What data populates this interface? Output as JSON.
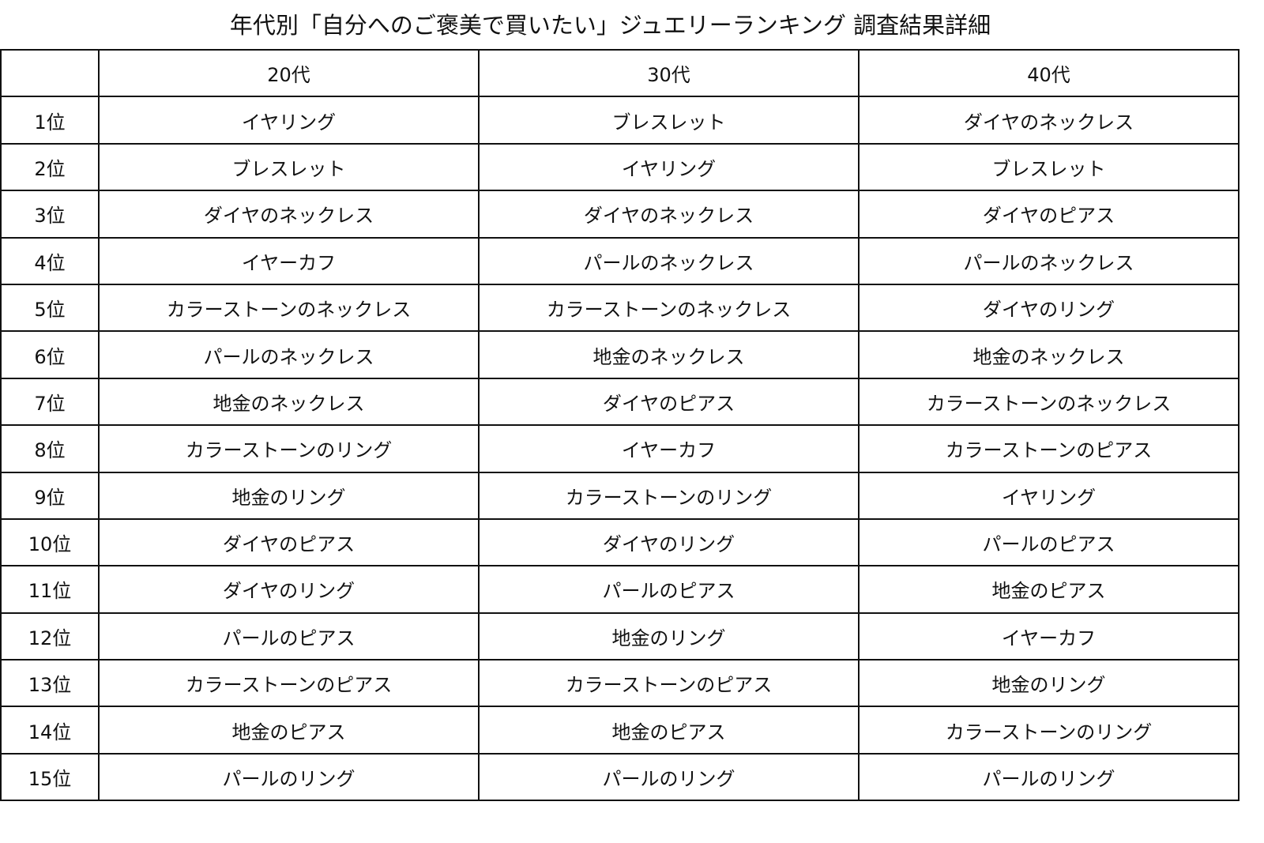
{
  "title": "年代別「自分へのご褒美で買いたい」ジュエリーランキング 調査結果詳細",
  "table": {
    "corner": "",
    "headers": [
      "20代",
      "30代",
      "40代"
    ],
    "rows": [
      {
        "rank": "1位",
        "cells": [
          "イヤリング",
          "ブレスレット",
          "ダイヤのネックレス"
        ]
      },
      {
        "rank": "2位",
        "cells": [
          "ブレスレット",
          "イヤリング",
          "ブレスレット"
        ]
      },
      {
        "rank": "3位",
        "cells": [
          "ダイヤのネックレス",
          "ダイヤのネックレス",
          "ダイヤのピアス"
        ]
      },
      {
        "rank": "4位",
        "cells": [
          "イヤーカフ",
          "パールのネックレス",
          "パールのネックレス"
        ]
      },
      {
        "rank": "5位",
        "cells": [
          "カラーストーンのネックレス",
          "カラーストーンのネックレス",
          "ダイヤのリング"
        ]
      },
      {
        "rank": "6位",
        "cells": [
          "パールのネックレス",
          "地金のネックレス",
          "地金のネックレス"
        ]
      },
      {
        "rank": "7位",
        "cells": [
          "地金のネックレス",
          "ダイヤのピアス",
          "カラーストーンのネックレス"
        ]
      },
      {
        "rank": "8位",
        "cells": [
          "カラーストーンのリング",
          "イヤーカフ",
          "カラーストーンのピアス"
        ]
      },
      {
        "rank": "9位",
        "cells": [
          "地金のリング",
          "カラーストーンのリング",
          "イヤリング"
        ]
      },
      {
        "rank": "10位",
        "cells": [
          "ダイヤのピアス",
          "ダイヤのリング",
          "パールのピアス"
        ]
      },
      {
        "rank": "11位",
        "cells": [
          "ダイヤのリング",
          "パールのピアス",
          "地金のピアス"
        ]
      },
      {
        "rank": "12位",
        "cells": [
          "パールのピアス",
          "地金のリング",
          "イヤーカフ"
        ]
      },
      {
        "rank": "13位",
        "cells": [
          "カラーストーンのピアス",
          "カラーストーンのピアス",
          "地金のリング"
        ]
      },
      {
        "rank": "14位",
        "cells": [
          "地金のピアス",
          "地金のピアス",
          "カラーストーンのリング"
        ]
      },
      {
        "rank": "15位",
        "cells": [
          "パールのリング",
          "パールのリング",
          "パールのリング"
        ]
      }
    ]
  }
}
